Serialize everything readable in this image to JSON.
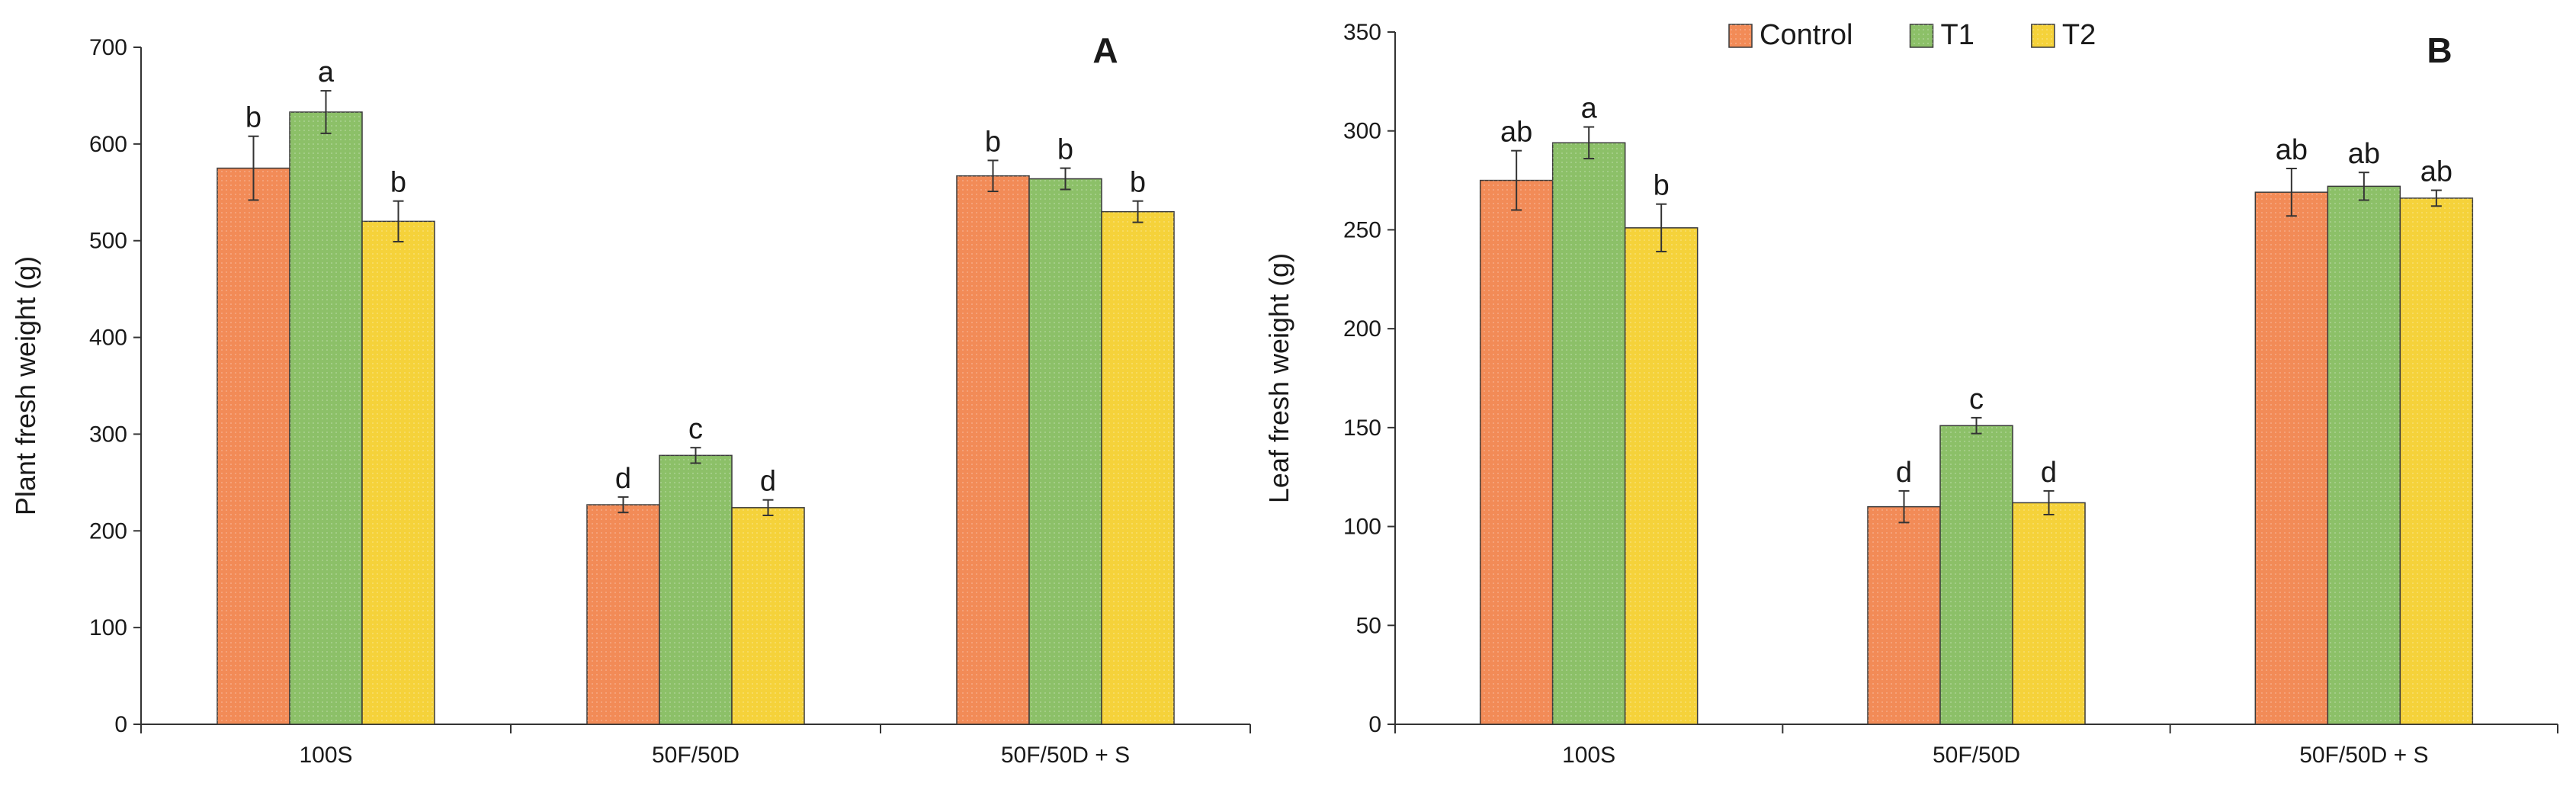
{
  "colors": {
    "Control": "#F28B57",
    "T1": "#8CC068",
    "T2": "#F5D23A"
  },
  "chart_data": [
    {
      "type": "bar",
      "panel": "A",
      "categories": [
        "100S",
        "50F/50D",
        "50F/50D + S"
      ],
      "ylabel": "Plant fresh weight (g)",
      "ylim": [
        0,
        700
      ],
      "yticks": [
        0,
        100,
        200,
        300,
        400,
        500,
        600,
        700
      ],
      "series": [
        {
          "name": "Control",
          "values": [
            575,
            227,
            567
          ],
          "errors": [
            33,
            8,
            16
          ],
          "letters": [
            "b",
            "d",
            "b"
          ]
        },
        {
          "name": "T1",
          "values": [
            633,
            278,
            564
          ],
          "errors": [
            22,
            8,
            11
          ],
          "letters": [
            "a",
            "c",
            "b"
          ]
        },
        {
          "name": "T2",
          "values": [
            520,
            224,
            530
          ],
          "errors": [
            21,
            8,
            11
          ],
          "letters": [
            "b",
            "d",
            "b"
          ]
        }
      ]
    },
    {
      "type": "bar",
      "panel": "B",
      "categories": [
        "100S",
        "50F/50D",
        "50F/50D + S"
      ],
      "ylabel": "Leaf fresh weight (g)",
      "ylim": [
        0,
        350
      ],
      "yticks": [
        0,
        50,
        100,
        150,
        200,
        250,
        300,
        350
      ],
      "legend": [
        "Control",
        "T1",
        "T2"
      ],
      "series": [
        {
          "name": "Control",
          "values": [
            275,
            110,
            269
          ],
          "errors": [
            15,
            8,
            12
          ],
          "letters": [
            "ab",
            "d",
            "ab"
          ]
        },
        {
          "name": "T1",
          "values": [
            294,
            151,
            272
          ],
          "errors": [
            8,
            4,
            7
          ],
          "letters": [
            "a",
            "c",
            "ab"
          ]
        },
        {
          "name": "T2",
          "values": [
            251,
            112,
            266
          ],
          "errors": [
            12,
            6,
            4
          ],
          "letters": [
            "b",
            "d",
            "ab"
          ]
        }
      ]
    }
  ]
}
